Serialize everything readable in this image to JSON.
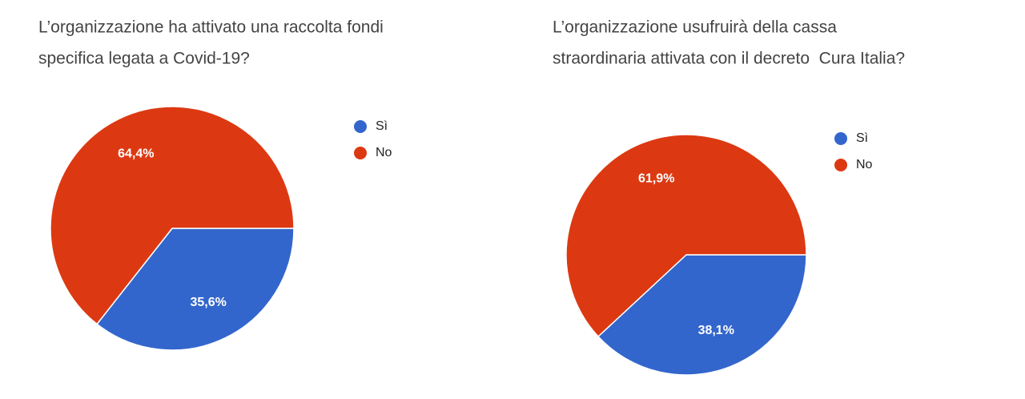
{
  "chart_data": [
    {
      "type": "pie",
      "title": [
        "L’organizzazione ha attivato una raccolta fondi",
        "specifica legata a Covid-19?"
      ],
      "categories": [
        "Sì",
        "No"
      ],
      "values": [
        35.6,
        64.4
      ],
      "value_labels": [
        "35,6%",
        "64,4%"
      ],
      "colors": [
        "#3366cc",
        "#dc3912"
      ]
    },
    {
      "type": "pie",
      "title": [
        "L’organizzazione usufruirà della cassa",
        "straordinaria attivata con il decreto  Cura Italia?"
      ],
      "categories": [
        "Sì",
        "No"
      ],
      "values": [
        38.1,
        61.9
      ],
      "value_labels": [
        "38,1%",
        "61,9%"
      ],
      "colors": [
        "#3366cc",
        "#dc3912"
      ]
    }
  ]
}
